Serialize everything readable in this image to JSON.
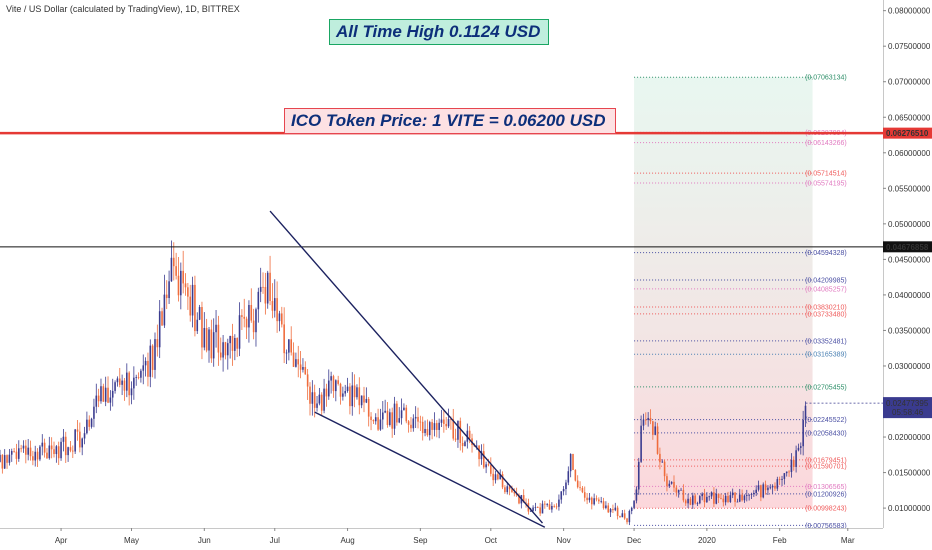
{
  "header": {
    "pair_title": "Vite / US Dollar (calculated by TradingView), 1D, BITTREX"
  },
  "annotations": {
    "ath_banner": "All Time High 0.1124 USD",
    "ico_banner": "ICO Token Price: 1 VITE = 0.06200 USD"
  },
  "colors": {
    "up_candle": "#3a3b8f",
    "down_candle": "#ef6c3c",
    "ico_line": "#e53935",
    "ath_label_bg": "#bfeedd",
    "ath_label_border": "#1aa663",
    "ico_label_bg": "#fde1e3",
    "ico_label_border": "#e6454f",
    "banner_text": "#0d2f7a",
    "fib_zone_top": "#d6f0e4",
    "fib_zone_bottom": "#fbc9cf",
    "trendline": "#1c2260"
  },
  "chart_data": {
    "type": "candlestick",
    "title": "Vite / US Dollar (calculated by TradingView), 1D, BITTREX",
    "xlabel": "",
    "ylabel": "",
    "x_ticks": [
      {
        "label": "Apr",
        "date": "2019-04-01"
      },
      {
        "label": "May",
        "date": "2019-05-01"
      },
      {
        "label": "Jun",
        "date": "2019-06-01"
      },
      {
        "label": "Jul",
        "date": "2019-07-01"
      },
      {
        "label": "Aug",
        "date": "2019-08-01"
      },
      {
        "label": "Sep",
        "date": "2019-09-01"
      },
      {
        "label": "Oct",
        "date": "2019-10-01"
      },
      {
        "label": "Nov",
        "date": "2019-11-01"
      },
      {
        "label": "Dec",
        "date": "2019-12-01"
      },
      {
        "label": "2020",
        "date": "2020-01-01"
      },
      {
        "label": "Feb",
        "date": "2020-02-01"
      },
      {
        "label": "Mar",
        "date": "2020-03-01"
      }
    ],
    "xlim": [
      "2019-03-06",
      "2020-03-16"
    ],
    "y_ticks": [
      0.08,
      0.075,
      0.07,
      0.065,
      0.06,
      0.055,
      0.05,
      0.045,
      0.04,
      0.035,
      0.03,
      0.025,
      0.02,
      0.015,
      0.01
    ],
    "y_tick_labels": [
      "0.08000000",
      "0.07500000",
      "0.07000000",
      "0.06500000",
      "0.06000000",
      "0.05500000",
      "0.05000000",
      "0.04500000",
      "0.04000000",
      "0.03500000",
      "0.03000000",
      "0.02500000",
      "0.02000000",
      "0.01500000",
      "0.01000000"
    ],
    "ylim": [
      0.0072,
      0.0815
    ],
    "price_points": [
      {
        "date": "2019-03-06",
        "close": 0.0165
      },
      {
        "date": "2019-03-15",
        "close": 0.0175
      },
      {
        "date": "2019-03-28",
        "close": 0.018
      },
      {
        "date": "2019-04-10",
        "close": 0.02
      },
      {
        "date": "2019-04-18",
        "close": 0.0265
      },
      {
        "date": "2019-04-30",
        "close": 0.027
      },
      {
        "date": "2019-05-10",
        "close": 0.031
      },
      {
        "date": "2019-05-18",
        "close": 0.042
      },
      {
        "date": "2019-05-25",
        "close": 0.0405
      },
      {
        "date": "2019-06-01",
        "close": 0.034
      },
      {
        "date": "2019-06-10",
        "close": 0.033
      },
      {
        "date": "2019-06-20",
        "close": 0.036
      },
      {
        "date": "2019-06-29",
        "close": 0.041
      },
      {
        "date": "2019-07-05",
        "close": 0.034
      },
      {
        "date": "2019-07-15",
        "close": 0.028
      },
      {
        "date": "2019-07-18",
        "close": 0.024
      },
      {
        "date": "2019-07-26",
        "close": 0.027
      },
      {
        "date": "2019-08-05",
        "close": 0.025
      },
      {
        "date": "2019-08-15",
        "close": 0.022
      },
      {
        "date": "2019-08-25",
        "close": 0.024
      },
      {
        "date": "2019-09-03",
        "close": 0.021
      },
      {
        "date": "2019-09-12",
        "close": 0.022
      },
      {
        "date": "2019-09-20",
        "close": 0.02
      },
      {
        "date": "2019-09-30",
        "close": 0.0155
      },
      {
        "date": "2019-10-10",
        "close": 0.012
      },
      {
        "date": "2019-10-20",
        "close": 0.0095
      },
      {
        "date": "2019-10-30",
        "close": 0.011
      },
      {
        "date": "2019-11-04",
        "close": 0.0165
      },
      {
        "date": "2019-11-10",
        "close": 0.0115
      },
      {
        "date": "2019-11-20",
        "close": 0.01
      },
      {
        "date": "2019-11-28",
        "close": 0.0085
      },
      {
        "date": "2019-12-02",
        "close": 0.0125
      },
      {
        "date": "2019-12-04",
        "close": 0.022
      },
      {
        "date": "2019-12-10",
        "close": 0.0205
      },
      {
        "date": "2019-12-14",
        "close": 0.014
      },
      {
        "date": "2019-12-24",
        "close": 0.011
      },
      {
        "date": "2020-01-05",
        "close": 0.0115
      },
      {
        "date": "2020-01-20",
        "close": 0.012
      },
      {
        "date": "2020-02-01",
        "close": 0.0135
      },
      {
        "date": "2020-02-06",
        "close": 0.016
      },
      {
        "date": "2020-02-10",
        "close": 0.018
      },
      {
        "date": "2020-02-12",
        "close": 0.0248
      }
    ],
    "candle_span": {
      "start": "2019-03-06",
      "end": "2020-02-12"
    },
    "series": [
      {
        "type": "horizontal_line",
        "value": 0.0627651,
        "label": "0.06276510"
      },
      {
        "type": "horizontal_line",
        "value": 0.04676858,
        "label": "0.04676858"
      }
    ],
    "last_price": {
      "label": "0.02477395",
      "value": 0.02477395,
      "countdown": "05:58:46"
    },
    "fib_zone": {
      "start": "2019-12-01",
      "end": "2020-02-15",
      "top": 0.07063134,
      "bottom": 0.01
    },
    "fib_levels": [
      {
        "label": "(0.07063134)",
        "value": 0.07063134,
        "color": "#2e8f69"
      },
      {
        "label": "(0.06287994)",
        "value": 0.06287994,
        "color": "#e17ac0"
      },
      {
        "label": "(0.06143266)",
        "value": 0.06143266,
        "color": "#e17ac0"
      },
      {
        "label": "(0.05714514)",
        "value": 0.05714514,
        "color": "#ef5b5b"
      },
      {
        "label": "(0.05574195)",
        "value": 0.05574195,
        "color": "#e17ac0"
      },
      {
        "label": "(0.04594328)",
        "value": 0.04594328,
        "color": "#4a4fa3"
      },
      {
        "label": "(0.04209985)",
        "value": 0.04209985,
        "color": "#4a4fa3"
      },
      {
        "label": "(0.04085257)",
        "value": 0.04085257,
        "color": "#e17ac0"
      },
      {
        "label": "(0.03830210)",
        "value": 0.0383021,
        "color": "#ef5b5b"
      },
      {
        "label": "(0.03733480)",
        "value": 0.0373348,
        "color": "#ef5b5b"
      },
      {
        "label": "(0.03352481)",
        "value": 0.03352481,
        "color": "#4a4fa3"
      },
      {
        "label": "(0.03165389)",
        "value": 0.03165389,
        "color": "#4a80b3"
      },
      {
        "label": "(0.02705455)",
        "value": 0.02705455,
        "color": "#2e8f69"
      },
      {
        "label": "(0.02245522)",
        "value": 0.02245522,
        "color": "#4a4fa3"
      },
      {
        "label": "(0.02058430)",
        "value": 0.0205843,
        "color": "#4a4fa3"
      },
      {
        "label": "(0.01679451)",
        "value": 0.01679451,
        "color": "#ef5b5b"
      },
      {
        "label": "(0.01590701)",
        "value": 0.01590701,
        "color": "#ef5b5b"
      },
      {
        "label": "(0.01306565)",
        "value": 0.01306565,
        "color": "#e17ac0"
      },
      {
        "label": "(0.01200926)",
        "value": 0.01200926,
        "color": "#4a4fa3"
      },
      {
        "label": "(0.00998243)",
        "value": 0.00998243,
        "color": "#ef5b5b"
      },
      {
        "label": "(0.00756583)",
        "value": 0.00756583,
        "color": "#4a4fa3"
      }
    ],
    "trendlines": [
      {
        "from": {
          "date": "2019-06-29",
          "value": 0.0518
        },
        "to": {
          "date": "2019-10-23",
          "value": 0.0079
        }
      },
      {
        "from": {
          "date": "2019-07-18",
          "value": 0.0235
        },
        "to": {
          "date": "2019-10-24",
          "value": 0.0073
        }
      }
    ],
    "grid": false,
    "legend": "none"
  }
}
